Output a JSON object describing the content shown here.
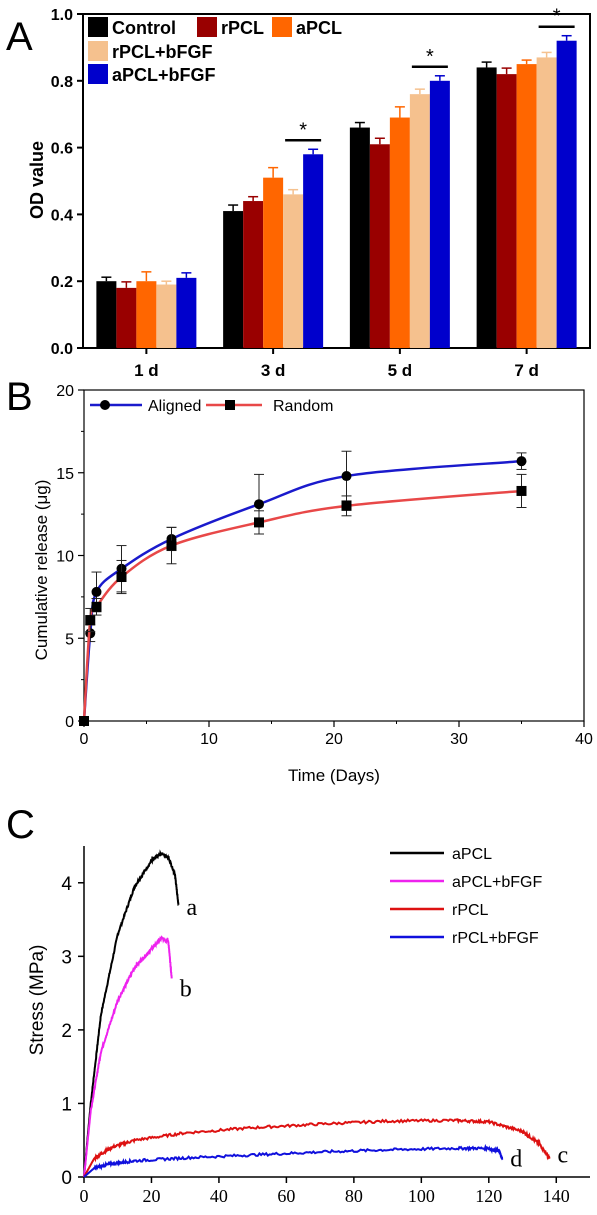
{
  "chart_data": [
    {
      "panel": "A",
      "type": "bar",
      "ylabel": "OD value",
      "ylim": [
        0,
        1.0
      ],
      "yticks": [
        "0.0",
        "0.2",
        "0.4",
        "0.6",
        "0.8",
        "1.0"
      ],
      "categories": [
        "1 d",
        "3 d",
        "5 d",
        "7 d"
      ],
      "legend_position": "top-left",
      "significance_marker": "*",
      "significance_groups": [
        1,
        2,
        3
      ],
      "series": [
        {
          "name": "Control",
          "color": "#000000",
          "values": [
            0.2,
            0.41,
            0.66,
            0.84
          ],
          "errors": [
            0.012,
            0.018,
            0.015,
            0.016
          ]
        },
        {
          "name": "rPCL",
          "color": "#990000",
          "values": [
            0.18,
            0.44,
            0.61,
            0.82
          ],
          "errors": [
            0.018,
            0.013,
            0.018,
            0.018
          ]
        },
        {
          "name": "aPCL",
          "color": "#ff6600",
          "values": [
            0.2,
            0.51,
            0.69,
            0.85
          ],
          "errors": [
            0.028,
            0.03,
            0.032,
            0.012
          ]
        },
        {
          "name": "rPCL+bFGF",
          "color": "#f5c18e",
          "values": [
            0.19,
            0.46,
            0.76,
            0.87
          ],
          "errors": [
            0.01,
            0.014,
            0.015,
            0.015
          ]
        },
        {
          "name": "aPCL+bFGF",
          "color": "#0000cc",
          "values": [
            0.21,
            0.58,
            0.8,
            0.92
          ],
          "errors": [
            0.015,
            0.015,
            0.015,
            0.015
          ]
        }
      ]
    },
    {
      "panel": "B",
      "type": "line",
      "xlabel": "Time (Days)",
      "ylabel": "Cumulative release (μg)",
      "xlim": [
        0,
        40
      ],
      "ylim": [
        0,
        20
      ],
      "xticks": [
        "0",
        "10",
        "20",
        "30",
        "40"
      ],
      "yticks": [
        "0",
        "5",
        "10",
        "15",
        "20"
      ],
      "legend_position": "top-left",
      "series": [
        {
          "name": "Aligned",
          "color": "#1a1acc",
          "marker": "circle",
          "x": [
            0,
            0.5,
            1,
            3,
            7,
            14,
            21,
            35
          ],
          "y": [
            0,
            5.3,
            7.8,
            9.2,
            11.0,
            13.1,
            14.8,
            15.7
          ],
          "errors": [
            0,
            0.5,
            1.2,
            1.4,
            0.7,
            1.8,
            1.5,
            0.5
          ]
        },
        {
          "name": "Random",
          "color": "#e84848",
          "marker": "square",
          "x": [
            0,
            0.5,
            1,
            3,
            7,
            14,
            21,
            35
          ],
          "y": [
            0,
            6.1,
            6.9,
            8.7,
            10.6,
            12.0,
            13.0,
            13.9
          ],
          "errors": [
            0,
            0.7,
            0.5,
            1.0,
            1.1,
            0.7,
            0.6,
            1.0
          ]
        }
      ]
    },
    {
      "panel": "C",
      "type": "line",
      "ylabel": "Stress (MPa)",
      "xlim": [
        0,
        150
      ],
      "ylim": [
        0,
        4.5
      ],
      "xticks": [
        "0",
        "20",
        "40",
        "60",
        "80",
        "100",
        "120",
        "140"
      ],
      "yticks": [
        "0",
        "1",
        "2",
        "3",
        "4"
      ],
      "legend_position": "top-right",
      "series": [
        {
          "name": "aPCL",
          "label": "a",
          "color": "#000000",
          "x": [
            0,
            2,
            5,
            10,
            15,
            20,
            23,
            25,
            27,
            28
          ],
          "y": [
            0,
            1.0,
            2.2,
            3.3,
            3.95,
            4.3,
            4.4,
            4.35,
            4.1,
            3.7
          ]
        },
        {
          "name": "aPCL+bFGF",
          "label": "b",
          "color": "#ee22ee",
          "x": [
            0,
            2,
            5,
            10,
            15,
            20,
            23,
            25,
            26
          ],
          "y": [
            0,
            0.9,
            1.7,
            2.4,
            2.85,
            3.1,
            3.25,
            3.2,
            2.7
          ]
        },
        {
          "name": "rPCL",
          "label": "c",
          "color": "#dd1111",
          "x": [
            0,
            3,
            8,
            15,
            30,
            50,
            70,
            90,
            110,
            120,
            130,
            135,
            138
          ],
          "y": [
            0,
            0.25,
            0.4,
            0.5,
            0.6,
            0.67,
            0.72,
            0.76,
            0.77,
            0.75,
            0.62,
            0.45,
            0.25
          ]
        },
        {
          "name": "rPCL+bFGF",
          "label": "d",
          "color": "#1010dd",
          "x": [
            0,
            3,
            8,
            15,
            30,
            50,
            70,
            90,
            110,
            120,
            123,
            124
          ],
          "y": [
            0,
            0.12,
            0.18,
            0.22,
            0.26,
            0.3,
            0.34,
            0.37,
            0.39,
            0.39,
            0.35,
            0.25
          ]
        }
      ]
    }
  ],
  "panel_labels": [
    "A",
    "B",
    "C"
  ]
}
